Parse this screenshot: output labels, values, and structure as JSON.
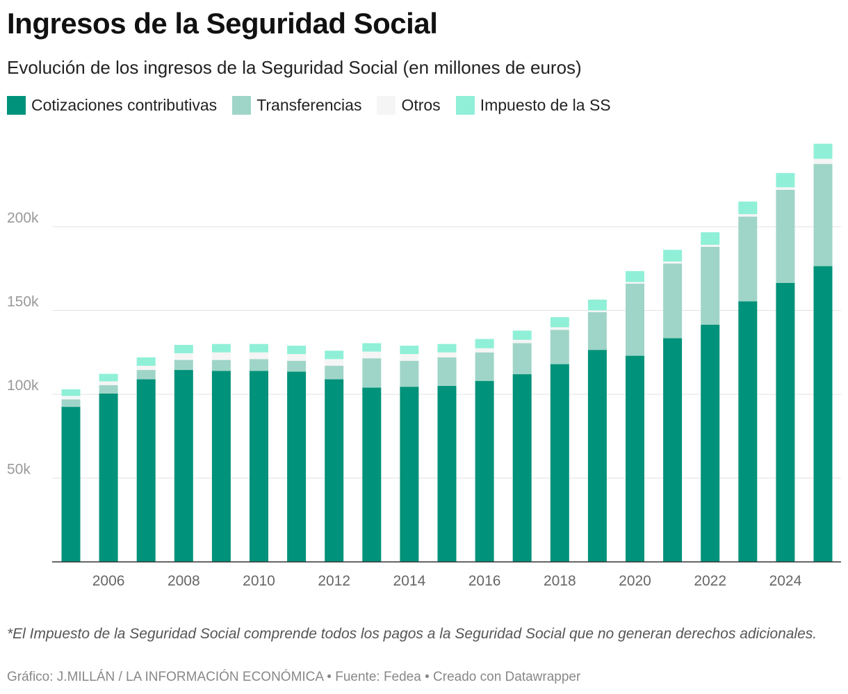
{
  "title": "Ingresos de la Seguridad Social",
  "subtitle": "Evolución de los ingresos de la Seguridad Social (en millones de euros)",
  "note": "*El Impuesto de la Seguridad Social comprende todos los pagos a la Seguridad Social que no generan derechos adicionales.",
  "credit": "Gráfico: J.MILLÁN / LA INFORMACIÓN ECONÓMICA • Fuente: Fedea  • Creado con Datawrapper",
  "chart_data": {
    "type": "bar",
    "stacked": true,
    "title": "Ingresos de la Seguridad Social",
    "subtitle": "Evolución de los ingresos de la Seguridad Social (en millones de euros)",
    "xlabel": "",
    "ylabel": "",
    "ylim": [
      0,
      250000
    ],
    "yticks": [
      50000,
      100000,
      150000,
      200000
    ],
    "ytick_labels": [
      "50k",
      "100k",
      "150k",
      "200k"
    ],
    "xtick_labels": [
      "2006",
      "2008",
      "2010",
      "2012",
      "2014",
      "2016",
      "2018",
      "2020",
      "2022",
      "2024"
    ],
    "grid": true,
    "legend": "top-left",
    "categories": [
      2005,
      2006,
      2007,
      2008,
      2009,
      2010,
      2011,
      2012,
      2013,
      2014,
      2015,
      2016,
      2017,
      2018,
      2019,
      2020,
      2021,
      2022,
      2023,
      2024,
      2025
    ],
    "series": [
      {
        "name": "Cotizaciones contributivas",
        "color": "#00927a",
        "values": [
          92500,
          100500,
          109000,
          114500,
          114000,
          114000,
          113500,
          109000,
          104000,
          104500,
          105000,
          108000,
          112000,
          118000,
          126500,
          123000,
          133500,
          141500,
          155500,
          166500,
          176500
        ]
      },
      {
        "name": "Transferencias",
        "color": "#9fd5c8",
        "values": [
          4500,
          5000,
          5500,
          6000,
          6500,
          7000,
          6500,
          8000,
          17500,
          15500,
          17000,
          17000,
          18500,
          20500,
          22500,
          43000,
          44500,
          46500,
          50500,
          55500,
          61000
        ]
      },
      {
        "name": "Otros",
        "color": "#f5f5f5",
        "values": [
          2000,
          2200,
          2500,
          4000,
          4500,
          4000,
          4000,
          4000,
          4000,
          4000,
          3000,
          2500,
          2000,
          1500,
          1000,
          1000,
          1200,
          1200,
          1500,
          1500,
          3000
        ]
      },
      {
        "name": "Impuesto de la SS",
        "color": "#8ff0d7",
        "values": [
          4000,
          4500,
          5000,
          5000,
          5000,
          5000,
          5000,
          5000,
          5000,
          5000,
          5000,
          5500,
          5500,
          6000,
          6500,
          6500,
          7000,
          7500,
          7500,
          8500,
          9000
        ]
      }
    ]
  }
}
